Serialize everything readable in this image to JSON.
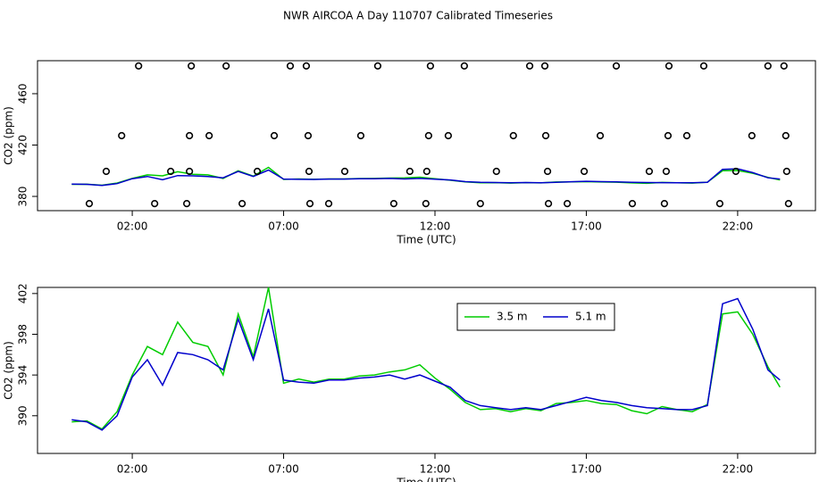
{
  "chart_data": [
    {
      "type": "line",
      "title": "NWR AIRCOA A  Day 110707  Calibrated Timeseries",
      "x_label": "Time (UTC)",
      "y_label": "CO2 (ppm)",
      "xlim": [
        -1.13,
        24.57
      ],
      "xticks": [
        {
          "value": 2,
          "label": "02:00"
        },
        {
          "value": 7,
          "label": "07:00"
        },
        {
          "value": 12,
          "label": "12:00"
        },
        {
          "value": 17,
          "label": "17:00"
        },
        {
          "value": 22,
          "label": "22:00"
        }
      ],
      "ylim": [
        368.9,
        485.7
      ],
      "yticks": [
        380,
        420,
        460
      ],
      "x": [
        0,
        0.5,
        1,
        1.5,
        2,
        2.5,
        3,
        3.5,
        4,
        4.5,
        5,
        5.5,
        6,
        6.5,
        7,
        7.5,
        8,
        8.5,
        9,
        9.5,
        10,
        10.5,
        11,
        11.5,
        12,
        12.5,
        13,
        13.5,
        14,
        14.5,
        15,
        15.5,
        16,
        16.5,
        17,
        17.5,
        18,
        18.5,
        19,
        19.5,
        20,
        20.5,
        21,
        21.5,
        22,
        22.5,
        23,
        23.4
      ],
      "series": [
        {
          "color": "#00cc00",
          "values": [
            389.4,
            389.5,
            388.7,
            390.4,
            394.0,
            396.8,
            396.0,
            399.2,
            397.2,
            396.8,
            394.0,
            400.0,
            395.8,
            402.6,
            393.2,
            393.6,
            393.3,
            393.6,
            393.6,
            393.9,
            394.0,
            394.3,
            394.5,
            395.0,
            393.7,
            392.6,
            391.3,
            390.6,
            390.7,
            390.4,
            390.7,
            390.5,
            391.2,
            391.3,
            391.5,
            391.2,
            391.1,
            390.5,
            390.2,
            390.9,
            390.6,
            390.4,
            391.1,
            400.0,
            400.2,
            398.0,
            394.8,
            392.8
          ]
        },
        {
          "color": "#0000cc",
          "values": [
            389.6,
            389.4,
            388.6,
            390.0,
            393.8,
            395.5,
            393.0,
            396.2,
            396.0,
            395.5,
            394.5,
            399.5,
            395.5,
            400.5,
            393.5,
            393.3,
            393.2,
            393.5,
            393.5,
            393.7,
            393.8,
            394.0,
            393.6,
            394.0,
            393.4,
            392.8,
            391.5,
            391.0,
            390.8,
            390.6,
            390.8,
            390.6,
            391.0,
            391.4,
            391.8,
            391.5,
            391.3,
            391.0,
            390.8,
            390.7,
            390.6,
            390.6,
            391.0,
            401.0,
            401.5,
            398.5,
            394.5,
            393.5
          ]
        }
      ],
      "points": {
        "color": "#000000",
        "x": [
          2.21,
          3.95,
          5.1,
          7.22,
          7.75,
          10.11,
          11.85,
          12.97,
          15.13,
          15.63,
          17.99,
          19.73,
          20.88,
          23.0,
          23.53,
          1.65,
          3.89,
          4.54,
          6.69,
          7.81,
          9.55,
          11.79,
          12.44,
          14.59,
          15.66,
          17.46,
          19.7,
          20.32,
          22.47,
          23.59,
          1.14,
          3.27,
          3.89,
          6.13,
          7.84,
          9.02,
          11.17,
          11.73,
          14.03,
          15.72,
          16.93,
          19.08,
          19.64,
          21.94,
          23.62,
          0.58,
          2.74,
          3.8,
          5.63,
          7.87,
          8.49,
          10.64,
          11.7,
          13.5,
          15.75,
          16.37,
          18.52,
          19.58,
          21.41,
          23.68
        ],
        "y": [
          481.6,
          481.6,
          481.6,
          481.6,
          481.6,
          481.6,
          481.6,
          481.6,
          481.6,
          481.6,
          481.6,
          481.6,
          481.6,
          481.6,
          481.6,
          427.3,
          427.3,
          427.3,
          427.3,
          427.3,
          427.3,
          427.3,
          427.3,
          427.3,
          427.3,
          427.3,
          427.3,
          427.3,
          427.3,
          427.3,
          399.5,
          399.5,
          399.5,
          399.5,
          399.5,
          399.5,
          399.5,
          399.5,
          399.5,
          399.5,
          399.5,
          399.5,
          399.5,
          399.5,
          399.5,
          374.4,
          374.4,
          374.4,
          374.4,
          374.4,
          374.4,
          374.4,
          374.4,
          374.4,
          374.4,
          374.4,
          374.4,
          374.4,
          374.4,
          374.4
        ]
      }
    },
    {
      "type": "line",
      "x_label": "Time (UTC)",
      "y_label": "CO2 (ppm)",
      "legend": "top",
      "xlim": [
        -1.13,
        24.57
      ],
      "xticks": [
        {
          "value": 2,
          "label": "02:00"
        },
        {
          "value": 7,
          "label": "07:00"
        },
        {
          "value": 12,
          "label": "12:00"
        },
        {
          "value": 17,
          "label": "17:00"
        },
        {
          "value": 22,
          "label": "22:00"
        }
      ],
      "ylim": [
        386.3,
        402.6
      ],
      "yticks": [
        390,
        394,
        398,
        402
      ],
      "x": [
        0,
        0.5,
        1,
        1.5,
        2,
        2.5,
        3,
        3.5,
        4,
        4.5,
        5,
        5.5,
        6,
        6.5,
        7,
        7.5,
        8,
        8.5,
        9,
        9.5,
        10,
        10.5,
        11,
        11.5,
        12,
        12.5,
        13,
        13.5,
        14,
        14.5,
        15,
        15.5,
        16,
        16.5,
        17,
        17.5,
        18,
        18.5,
        19,
        19.5,
        20,
        20.5,
        21,
        21.5,
        22,
        22.5,
        23,
        23.4
      ],
      "series": [
        {
          "name": "3.5 m",
          "color": "#00cc00",
          "values": [
            389.4,
            389.5,
            388.7,
            390.4,
            394.0,
            396.8,
            396.0,
            399.2,
            397.2,
            396.8,
            394.0,
            400.0,
            395.8,
            402.6,
            393.2,
            393.6,
            393.3,
            393.6,
            393.6,
            393.9,
            394.0,
            394.3,
            394.5,
            395.0,
            393.7,
            392.6,
            391.3,
            390.6,
            390.7,
            390.4,
            390.7,
            390.5,
            391.2,
            391.3,
            391.5,
            391.2,
            391.1,
            390.5,
            390.2,
            390.9,
            390.6,
            390.4,
            391.1,
            400.0,
            400.2,
            398.0,
            394.8,
            392.8
          ]
        },
        {
          "name": "5.1 m",
          "color": "#0000cc",
          "values": [
            389.6,
            389.4,
            388.6,
            390.0,
            393.8,
            395.5,
            393.0,
            396.2,
            396.0,
            395.5,
            394.5,
            399.5,
            395.5,
            400.5,
            393.5,
            393.3,
            393.2,
            393.5,
            393.5,
            393.7,
            393.8,
            394.0,
            393.6,
            394.0,
            393.4,
            392.8,
            391.5,
            391.0,
            390.8,
            390.6,
            390.8,
            390.6,
            391.0,
            391.4,
            391.8,
            391.5,
            391.3,
            391.0,
            390.8,
            390.7,
            390.6,
            390.6,
            391.0,
            401.0,
            401.5,
            398.5,
            394.5,
            393.5
          ]
        }
      ]
    }
  ]
}
